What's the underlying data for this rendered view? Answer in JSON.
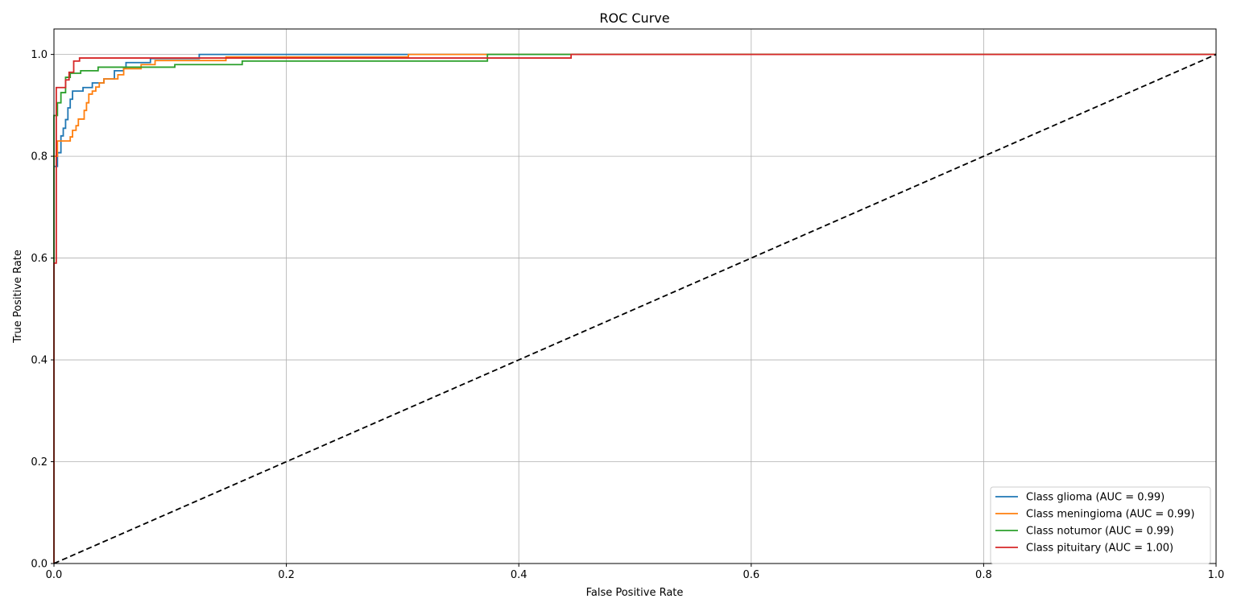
{
  "chart_data": {
    "type": "line",
    "title": "ROC Curve",
    "xlabel": "False Positive Rate",
    "ylabel": "True Positive Rate",
    "xlim": [
      0.0,
      1.0
    ],
    "ylim": [
      0.0,
      1.05
    ],
    "xticks": [
      "0.0",
      "0.2",
      "0.4",
      "0.6",
      "0.8",
      "1.0"
    ],
    "yticks": [
      "0.0",
      "0.2",
      "0.4",
      "0.6",
      "0.8",
      "1.0"
    ],
    "grid": true,
    "legend_position": "bottom-right",
    "series": [
      {
        "name": "Class glioma (AUC = 0.99)",
        "color": "#1f77b4",
        "step": true,
        "x": [
          0,
          0,
          0.003,
          0.003,
          0.006,
          0.006,
          0.008,
          0.008,
          0.01,
          0.01,
          0.012,
          0.012,
          0.014,
          0.014,
          0.016,
          0.016,
          0.025,
          0.025,
          0.033,
          0.033,
          0.043,
          0.043,
          0.052,
          0.052,
          0.06,
          0.06,
          0.062,
          0.062,
          0.083,
          0.083,
          0.125,
          0.125,
          0.31,
          0.31,
          1.0
        ],
        "y": [
          0,
          0.78,
          0.78,
          0.807,
          0.807,
          0.84,
          0.84,
          0.855,
          0.855,
          0.872,
          0.872,
          0.895,
          0.895,
          0.912,
          0.912,
          0.928,
          0.928,
          0.935,
          0.935,
          0.944,
          0.944,
          0.952,
          0.952,
          0.968,
          0.968,
          0.975,
          0.975,
          0.984,
          0.984,
          0.992,
          0.992,
          1.0,
          1.0,
          1.0,
          1.0
        ]
      },
      {
        "name": "Class meningioma (AUC = 0.99)",
        "color": "#ff7f0e",
        "step": true,
        "x": [
          0,
          0,
          0.003,
          0.003,
          0.014,
          0.014,
          0.016,
          0.016,
          0.019,
          0.019,
          0.021,
          0.021,
          0.026,
          0.026,
          0.028,
          0.028,
          0.03,
          0.03,
          0.033,
          0.033,
          0.036,
          0.036,
          0.039,
          0.039,
          0.043,
          0.043,
          0.055,
          0.055,
          0.06,
          0.06,
          0.075,
          0.075,
          0.087,
          0.087,
          0.148,
          0.148,
          0.305,
          0.305,
          0.372,
          0.372,
          1.0
        ],
        "y": [
          0,
          0.8,
          0.8,
          0.83,
          0.83,
          0.838,
          0.838,
          0.851,
          0.851,
          0.86,
          0.86,
          0.873,
          0.873,
          0.89,
          0.89,
          0.905,
          0.905,
          0.922,
          0.922,
          0.928,
          0.928,
          0.936,
          0.936,
          0.944,
          0.944,
          0.952,
          0.952,
          0.96,
          0.96,
          0.972,
          0.972,
          0.98,
          0.98,
          0.988,
          0.988,
          0.995,
          0.995,
          1.0,
          1.0,
          1.0,
          1.0
        ]
      },
      {
        "name": "Class notumor (AUC = 0.99)",
        "color": "#2ca02c",
        "step": true,
        "x": [
          0,
          0,
          0.003,
          0.003,
          0.006,
          0.006,
          0.01,
          0.01,
          0.014,
          0.014,
          0.023,
          0.023,
          0.038,
          0.038,
          0.104,
          0.104,
          0.162,
          0.162,
          0.373,
          0.373,
          0.445,
          0.445,
          1.0
        ],
        "y": [
          0,
          0.88,
          0.88,
          0.905,
          0.905,
          0.925,
          0.925,
          0.955,
          0.955,
          0.963,
          0.963,
          0.968,
          0.968,
          0.975,
          0.975,
          0.98,
          0.98,
          0.987,
          0.987,
          1.0,
          1.0,
          1.0,
          1.0
        ]
      },
      {
        "name": "Class pituitary (AUC = 1.00)",
        "color": "#d62728",
        "step": true,
        "x": [
          0,
          0,
          0.002,
          0.002,
          0.01,
          0.01,
          0.013,
          0.013,
          0.017,
          0.017,
          0.022,
          0.022,
          0.125,
          0.125,
          0.445,
          0.445,
          1.0
        ],
        "y": [
          0,
          0.59,
          0.59,
          0.935,
          0.935,
          0.95,
          0.95,
          0.965,
          0.965,
          0.987,
          0.987,
          0.993,
          0.993,
          0.993,
          0.993,
          1.0,
          1.0
        ]
      },
      {
        "name": "",
        "color": "#000000",
        "dashed": true,
        "x": [
          0,
          1
        ],
        "y": [
          0,
          1
        ]
      }
    ]
  }
}
